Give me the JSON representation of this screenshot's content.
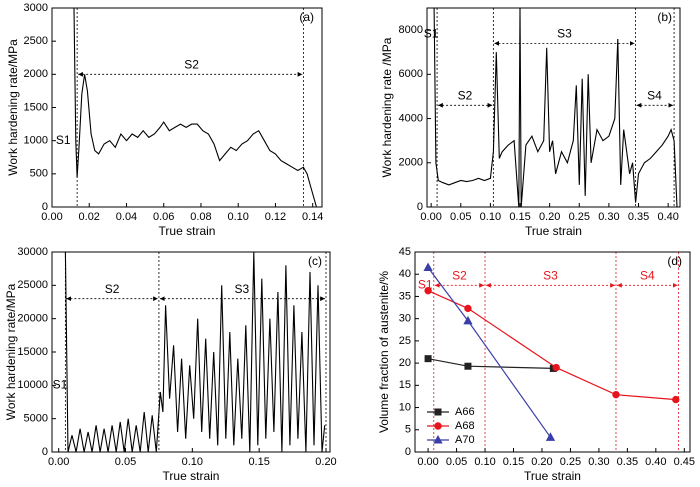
{
  "chart_data": [
    {
      "type": "line",
      "panel_label": "(a)",
      "xlabel": "True strain",
      "ylabel": "Work hardening rate/MPa",
      "color": "#000000",
      "xlim": [
        0,
        0.145
      ],
      "ylim": [
        0,
        3000
      ],
      "xticks": [
        {
          "value": 0,
          "label": "0.00"
        },
        {
          "value": 0.02,
          "label": "0.02"
        },
        {
          "value": 0.04,
          "label": "0.04"
        },
        {
          "value": 0.06,
          "label": "0.06"
        },
        {
          "value": 0.08,
          "label": "0.08"
        },
        {
          "value": 0.1,
          "label": "0.10"
        },
        {
          "value": 0.12,
          "label": "0.12"
        },
        {
          "value": 0.14,
          "label": "0.14"
        }
      ],
      "yticks": [
        0,
        500,
        1000,
        1500,
        2000,
        2500,
        3000
      ],
      "x": [
        0.0118,
        0.0122,
        0.0128,
        0.0135,
        0.0145,
        0.016,
        0.0175,
        0.019,
        0.021,
        0.023,
        0.025,
        0.028,
        0.031,
        0.034,
        0.037,
        0.04,
        0.043,
        0.046,
        0.049,
        0.052,
        0.055,
        0.058,
        0.06,
        0.063,
        0.066,
        0.069,
        0.072,
        0.075,
        0.078,
        0.081,
        0.084,
        0.087,
        0.09,
        0.093,
        0.096,
        0.099,
        0.102,
        0.105,
        0.108,
        0.111,
        0.114,
        0.117,
        0.12,
        0.123,
        0.126,
        0.129,
        0.132,
        0.135,
        0.137,
        0.139,
        0.141,
        0.142
      ],
      "values": [
        3000,
        2200,
        1000,
        450,
        900,
        1700,
        2000,
        1750,
        1100,
        850,
        800,
        950,
        1000,
        900,
        1100,
        1000,
        1100,
        1050,
        1150,
        1050,
        1100,
        1200,
        1280,
        1150,
        1200,
        1250,
        1200,
        1250,
        1250,
        1150,
        1100,
        950,
        700,
        800,
        900,
        850,
        950,
        1000,
        1100,
        1150,
        1000,
        850,
        800,
        700,
        650,
        600,
        550,
        600,
        500,
        300,
        100,
        0
      ],
      "boundaries": [
        0.0135,
        0.135
      ],
      "regions": [
        {
          "label": "S1",
          "x": 0.006,
          "y": 1000
        },
        {
          "label": "S2",
          "x": 0.075,
          "y": 2000,
          "span": [
            0.0135,
            0.135
          ]
        }
      ]
    },
    {
      "type": "line",
      "panel_label": "(b)",
      "xlabel": "True strain",
      "ylabel": "Work hardening rate /MPa",
      "color": "#000000",
      "xlim": [
        -0.007,
        0.42
      ],
      "ylim": [
        0,
        9000
      ],
      "xticks": [
        {
          "value": 0,
          "label": "0.00"
        },
        {
          "value": 0.05,
          "label": "0.05"
        },
        {
          "value": 0.1,
          "label": "0.10"
        },
        {
          "value": 0.15,
          "label": "0.15"
        },
        {
          "value": 0.2,
          "label": "0.20"
        },
        {
          "value": 0.25,
          "label": "0.25"
        },
        {
          "value": 0.3,
          "label": "0.30"
        },
        {
          "value": 0.35,
          "label": "0.35"
        },
        {
          "value": 0.4,
          "label": "0.40"
        }
      ],
      "yticks": [
        0,
        2000,
        4000,
        6000,
        8000
      ],
      "x": [
        0.005,
        0.008,
        0.012,
        0.02,
        0.03,
        0.04,
        0.05,
        0.06,
        0.07,
        0.08,
        0.09,
        0.1,
        0.105,
        0.11,
        0.115,
        0.12,
        0.13,
        0.14,
        0.148,
        0.15,
        0.152,
        0.16,
        0.17,
        0.18,
        0.19,
        0.195,
        0.2,
        0.205,
        0.21,
        0.22,
        0.23,
        0.24,
        0.245,
        0.25,
        0.255,
        0.26,
        0.265,
        0.27,
        0.28,
        0.29,
        0.3,
        0.31,
        0.315,
        0.32,
        0.325,
        0.33,
        0.335,
        0.34,
        0.345,
        0.35,
        0.36,
        0.37,
        0.38,
        0.39,
        0.4,
        0.405,
        0.41,
        0.415
      ],
      "values": [
        9000,
        2000,
        1200,
        1100,
        1000,
        1100,
        1200,
        1150,
        1200,
        1300,
        1200,
        1300,
        2500,
        7000,
        2200,
        2500,
        2800,
        3000,
        0,
        9000,
        0,
        2800,
        3200,
        2500,
        3000,
        7200,
        2500,
        3000,
        1500,
        2500,
        2000,
        3000,
        5500,
        1000,
        5800,
        500,
        6000,
        2000,
        3500,
        3000,
        3200,
        4000,
        7600,
        1000,
        3500,
        2500,
        1500,
        2000,
        200,
        1500,
        2000,
        2200,
        2500,
        2800,
        3200,
        3500,
        3000,
        0
      ],
      "boundaries": [
        0.01,
        0.105,
        0.345,
        0.41
      ],
      "regions": [
        {
          "label": "S1",
          "x": 0.0,
          "y": 7800
        },
        {
          "label": "S2",
          "x": 0.057,
          "y": 4600,
          "span": [
            0.01,
            0.105
          ]
        },
        {
          "label": "S3",
          "x": 0.225,
          "y": 7400,
          "span": [
            0.105,
            0.345
          ]
        },
        {
          "label": "S4",
          "x": 0.377,
          "y": 4600,
          "span": [
            0.345,
            0.41
          ]
        }
      ]
    },
    {
      "type": "line",
      "panel_label": "(c)",
      "xlabel": "True strain",
      "ylabel": "Work hardening rate/MPa",
      "color": "#000000",
      "xlim": [
        -0.005,
        0.203
      ],
      "ylim": [
        0,
        30000
      ],
      "xticks": [
        {
          "value": 0,
          "label": "0.00"
        },
        {
          "value": 0.05,
          "label": "0.05"
        },
        {
          "value": 0.1,
          "label": "0.10"
        },
        {
          "value": 0.15,
          "label": "0.15"
        },
        {
          "value": 0.2,
          "label": "0.20"
        }
      ],
      "yticks": [
        0,
        5000,
        10000,
        15000,
        20000,
        25000,
        30000
      ],
      "x": [
        0.005,
        0.007,
        0.01,
        0.013,
        0.016,
        0.019,
        0.022,
        0.025,
        0.028,
        0.031,
        0.034,
        0.037,
        0.04,
        0.043,
        0.046,
        0.049,
        0.052,
        0.055,
        0.058,
        0.061,
        0.064,
        0.067,
        0.07,
        0.073,
        0.076,
        0.078,
        0.08,
        0.083,
        0.086,
        0.089,
        0.092,
        0.095,
        0.098,
        0.101,
        0.104,
        0.107,
        0.11,
        0.113,
        0.116,
        0.119,
        0.122,
        0.125,
        0.128,
        0.131,
        0.134,
        0.137,
        0.14,
        0.143,
        0.146,
        0.149,
        0.152,
        0.155,
        0.158,
        0.161,
        0.164,
        0.167,
        0.17,
        0.173,
        0.176,
        0.179,
        0.182,
        0.185,
        0.188,
        0.191,
        0.194,
        0.197,
        0.199
      ],
      "values": [
        30000,
        0,
        2500,
        0,
        3500,
        0,
        3000,
        0,
        4000,
        0,
        3500,
        0,
        4000,
        0,
        4500,
        0,
        5000,
        0,
        4000,
        0,
        6000,
        0,
        5500,
        0,
        9000,
        6000,
        22000,
        8000,
        16000,
        3000,
        14000,
        2000,
        13000,
        5000,
        20000,
        3000,
        17000,
        2000,
        15000,
        1000,
        25000,
        2000,
        18000,
        1000,
        14000,
        2000,
        19000,
        0,
        30000,
        1000,
        26000,
        2000,
        20000,
        3000,
        24000,
        0,
        28000,
        1000,
        22000,
        2000,
        18000,
        0,
        27000,
        1000,
        25000,
        0,
        4000
      ],
      "boundaries": [
        0.005,
        0.075,
        0.2
      ],
      "regions": [
        {
          "label": "S1",
          "x": 0.001,
          "y": 10000
        },
        {
          "label": "S2",
          "x": 0.04,
          "y": 23000,
          "span": [
            0.005,
            0.075
          ]
        },
        {
          "label": "S3",
          "x": 0.137,
          "y": 23000,
          "span": [
            0.075,
            0.2
          ]
        }
      ]
    },
    {
      "type": "line",
      "panel_label": "(d)",
      "xlabel": "True strain",
      "ylabel": "Volume fraction of austenite/%",
      "annotation_color": "#e8141c",
      "legend": "lower left",
      "xlim": [
        -0.023,
        0.46
      ],
      "ylim": [
        0,
        45
      ],
      "xticks": [
        {
          "value": 0,
          "label": "0.00"
        },
        {
          "value": 0.05,
          "label": "0.05"
        },
        {
          "value": 0.1,
          "label": "0.10"
        },
        {
          "value": 0.15,
          "label": "0.15"
        },
        {
          "value": 0.2,
          "label": "0.20"
        },
        {
          "value": 0.25,
          "label": "0.25"
        },
        {
          "value": 0.3,
          "label": "0.30"
        },
        {
          "value": 0.35,
          "label": "0.35"
        },
        {
          "value": 0.4,
          "label": "0.40"
        },
        {
          "value": 0.45,
          "label": "0.45"
        }
      ],
      "yticks": [
        0,
        5,
        10,
        15,
        20,
        25,
        30,
        35,
        40,
        45
      ],
      "series": [
        {
          "name": "A66",
          "color": "#222222",
          "marker": "square",
          "x": [
            0,
            0.07,
            0.22
          ],
          "values": [
            21,
            19.3,
            18.8
          ]
        },
        {
          "name": "A68",
          "color": "#e8141c",
          "marker": "circle",
          "x": [
            0,
            0.07,
            0.225,
            0.33,
            0.435
          ],
          "values": [
            36.3,
            32.3,
            19,
            12.9,
            11.8
          ]
        },
        {
          "name": "A70",
          "color": "#3a3fa8",
          "marker": "triangle",
          "x": [
            0,
            0.07,
            0.215
          ],
          "values": [
            41.5,
            29.5,
            3.3
          ]
        }
      ],
      "boundaries": [
        0.01,
        0.1,
        0.33,
        0.44
      ],
      "regions": [
        {
          "label": "S1",
          "x": -0.005,
          "y": 37.5
        },
        {
          "label": "S2",
          "x": 0.055,
          "y": 37.5,
          "span": [
            0.01,
            0.1
          ]
        },
        {
          "label": "S3",
          "x": 0.215,
          "y": 37.5,
          "span": [
            0.1,
            0.33
          ]
        },
        {
          "label": "S4",
          "x": 0.385,
          "y": 37.5,
          "span": [
            0.33,
            0.44
          ]
        }
      ]
    }
  ]
}
